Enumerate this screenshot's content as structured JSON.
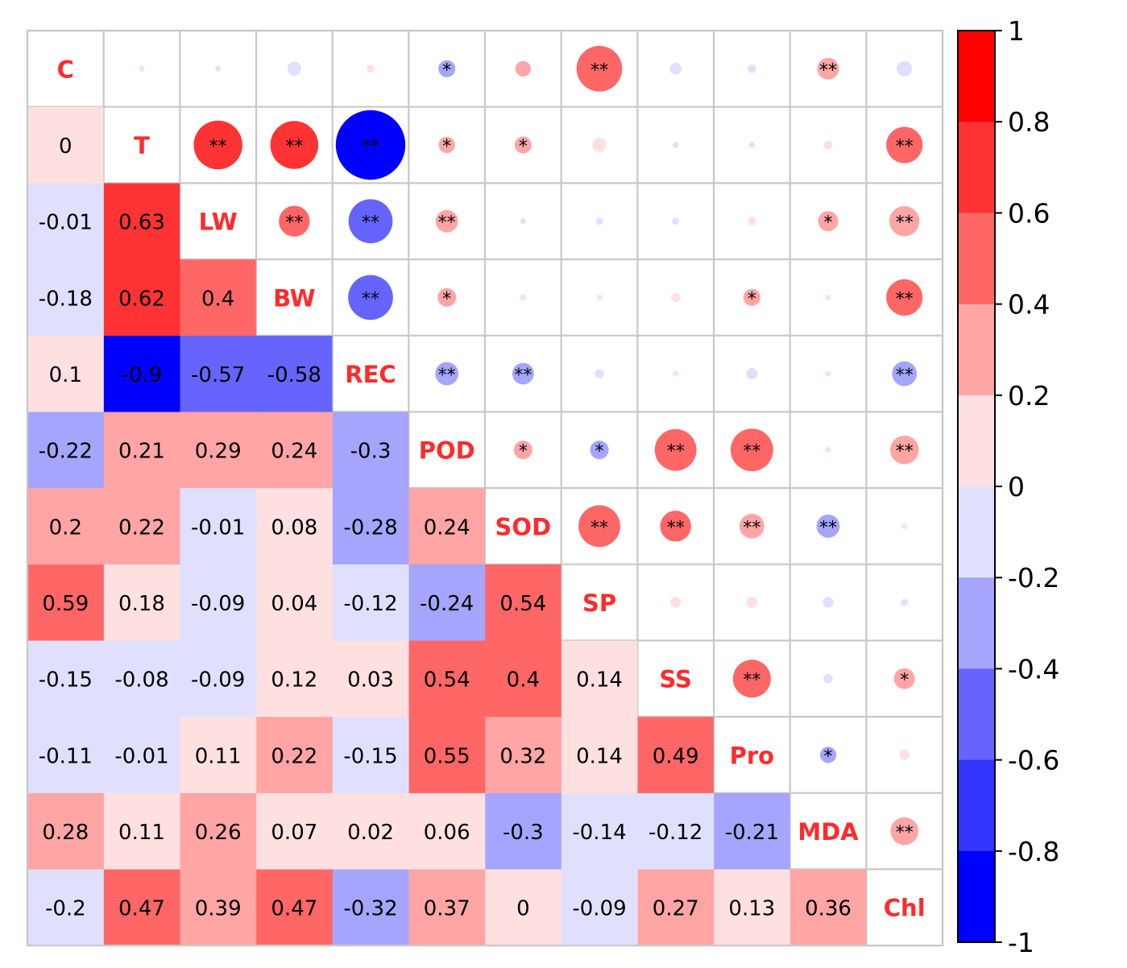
{
  "chart_data": {
    "type": "heatmap",
    "variables": [
      "C",
      "T",
      "LW",
      "BW",
      "REC",
      "POD",
      "SOD",
      "SP",
      "SS",
      "Pro",
      "MDA",
      "Chl"
    ],
    "lower_values": [
      [],
      [
        "0"
      ],
      [
        "-0.01",
        "0.63"
      ],
      [
        "-0.18",
        "0.62",
        "0.4"
      ],
      [
        "0.1",
        "-0.9",
        "-0.57",
        "-0.58"
      ],
      [
        "-0.22",
        "0.21",
        "0.29",
        "0.24",
        "-0.3"
      ],
      [
        "0.2",
        "0.22",
        "-0.01",
        "0.08",
        "-0.28",
        "0.24"
      ],
      [
        "0.59",
        "0.18",
        "-0.09",
        "0.04",
        "-0.12",
        "-0.24",
        "0.54"
      ],
      [
        "-0.15",
        "-0.08",
        "-0.09",
        "0.12",
        "0.03",
        "0.54",
        "0.4",
        "0.14"
      ],
      [
        "-0.11",
        "-0.01",
        "0.11",
        "0.22",
        "-0.15",
        "0.55",
        "0.32",
        "0.14",
        "0.49"
      ],
      [
        "0.28",
        "0.11",
        "0.26",
        "0.07",
        "0.02",
        "0.06",
        "-0.3",
        "-0.14",
        "-0.12",
        "-0.21"
      ],
      [
        "-0.2",
        "0.47",
        "0.39",
        "0.47",
        "-0.32",
        "0.37",
        "0",
        "-0.09",
        "0.27",
        "0.13",
        "0.36"
      ]
    ],
    "significance": [
      [],
      [
        ""
      ],
      [
        "",
        "**"
      ],
      [
        "",
        "**",
        "**"
      ],
      [
        "",
        "**",
        "**",
        "**"
      ],
      [
        "*",
        "*",
        "**",
        "*",
        "**"
      ],
      [
        "",
        "*",
        "",
        "",
        "**",
        "*"
      ],
      [
        "**",
        "",
        "",
        "",
        "",
        "*",
        "**"
      ],
      [
        "",
        "",
        "",
        "",
        "",
        "**",
        "**",
        ""
      ],
      [
        "",
        "",
        "",
        "*",
        "",
        "**",
        "**",
        "",
        "**"
      ],
      [
        "**",
        "",
        "*",
        "",
        "",
        "",
        "**",
        "",
        "",
        "*"
      ],
      [
        "",
        "**",
        "**",
        "**",
        "**",
        "**",
        "",
        "",
        "*",
        "",
        "**"
      ]
    ],
    "colorbar": {
      "ticks": [
        "1",
        "0.8",
        "0.6",
        "0.4",
        "0.2",
        "0",
        "-0.2",
        "-0.4",
        "-0.6",
        "-0.8",
        "-1"
      ],
      "range": [
        -1,
        1
      ],
      "bins": [
        {
          "from": 0.8,
          "to": 1.0,
          "color": "#ff0000"
        },
        {
          "from": 0.6,
          "to": 0.8,
          "color": "#ff3333"
        },
        {
          "from": 0.4,
          "to": 0.6,
          "color": "#ff6666"
        },
        {
          "from": 0.2,
          "to": 0.4,
          "color": "#ffa5a5"
        },
        {
          "from": 0.0,
          "to": 0.2,
          "color": "#ffe0e0"
        },
        {
          "from": -0.2,
          "to": 0.0,
          "color": "#e0e0fe"
        },
        {
          "from": -0.4,
          "to": -0.2,
          "color": "#a5a5fd"
        },
        {
          "from": -0.6,
          "to": -0.4,
          "color": "#6565fd"
        },
        {
          "from": -0.8,
          "to": -0.6,
          "color": "#3333fe"
        },
        {
          "from": -1.0,
          "to": -0.8,
          "color": "#0000ff"
        }
      ]
    },
    "label_color": "#ff2b2b",
    "grid_color": "#c8c8c8"
  }
}
